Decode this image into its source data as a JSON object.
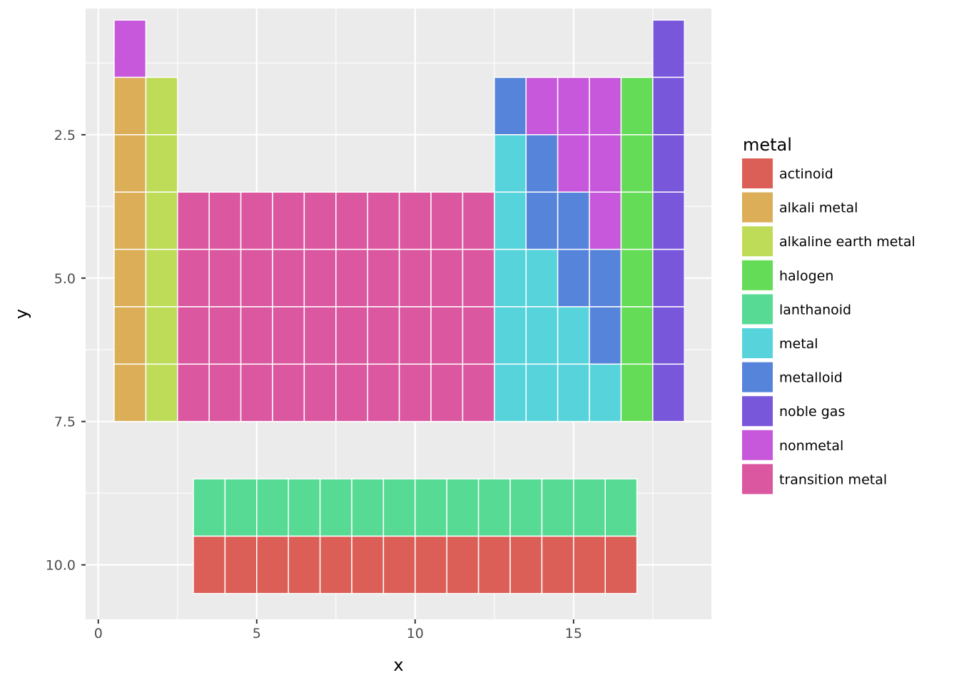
{
  "chart_data": {
    "type": "heatmap",
    "title": "",
    "xlabel": "x",
    "ylabel": "y",
    "xlim": [
      -0.4,
      19.35
    ],
    "ylim": [
      0.3,
      10.95
    ],
    "y_reversed": true,
    "grid": true,
    "legend_position": "right",
    "legend_title": "metal",
    "x_ticks": [
      {
        "value": 0,
        "label": "0"
      },
      {
        "value": 5,
        "label": "5"
      },
      {
        "value": 10,
        "label": "10"
      },
      {
        "value": 15,
        "label": "15"
      }
    ],
    "y_ticks": [
      {
        "value": 2.5,
        "label": "2.5"
      },
      {
        "value": 5.0,
        "label": "5.0"
      },
      {
        "value": 7.5,
        "label": "7.5"
      },
      {
        "value": 10.0,
        "label": "10.0"
      }
    ],
    "categories": [
      {
        "name": "actinoid",
        "color": "#DB5F57"
      },
      {
        "name": "alkali metal",
        "color": "#DBAE57"
      },
      {
        "name": "alkaline earth metal",
        "color": "#BEDC58"
      },
      {
        "name": "halogen",
        "color": "#65DC57"
      },
      {
        "name": "lanthanoid",
        "color": "#57DB94"
      },
      {
        "name": "metal",
        "color": "#57D3DB"
      },
      {
        "name": "metalloid",
        "color": "#5784DB"
      },
      {
        "name": "noble gas",
        "color": "#7957DB"
      },
      {
        "name": "nonmetal",
        "color": "#C757DB"
      },
      {
        "name": "transition metal",
        "color": "#DB57A0"
      }
    ],
    "rows": [
      {
        "y": 1,
        "cells": [
          {
            "x": 1,
            "c": "nonmetal"
          },
          {
            "x": 18,
            "c": "noble gas"
          }
        ]
      },
      {
        "y": 2,
        "cells": [
          {
            "x": 1,
            "c": "alkali metal"
          },
          {
            "x": 2,
            "c": "alkaline earth metal"
          },
          {
            "x": 13,
            "c": "metalloid"
          },
          {
            "x": 14,
            "c": "nonmetal"
          },
          {
            "x": 15,
            "c": "nonmetal"
          },
          {
            "x": 16,
            "c": "nonmetal"
          },
          {
            "x": 17,
            "c": "halogen"
          },
          {
            "x": 18,
            "c": "noble gas"
          }
        ]
      },
      {
        "y": 3,
        "cells": [
          {
            "x": 1,
            "c": "alkali metal"
          },
          {
            "x": 2,
            "c": "alkaline earth metal"
          },
          {
            "x": 13,
            "c": "metal"
          },
          {
            "x": 14,
            "c": "metalloid"
          },
          {
            "x": 15,
            "c": "nonmetal"
          },
          {
            "x": 16,
            "c": "nonmetal"
          },
          {
            "x": 17,
            "c": "halogen"
          },
          {
            "x": 18,
            "c": "noble gas"
          }
        ]
      },
      {
        "y": 4,
        "cells": [
          {
            "x": 1,
            "c": "alkali metal"
          },
          {
            "x": 2,
            "c": "alkaline earth metal"
          },
          {
            "x": 3,
            "c": "transition metal"
          },
          {
            "x": 4,
            "c": "transition metal"
          },
          {
            "x": 5,
            "c": "transition metal"
          },
          {
            "x": 6,
            "c": "transition metal"
          },
          {
            "x": 7,
            "c": "transition metal"
          },
          {
            "x": 8,
            "c": "transition metal"
          },
          {
            "x": 9,
            "c": "transition metal"
          },
          {
            "x": 10,
            "c": "transition metal"
          },
          {
            "x": 11,
            "c": "transition metal"
          },
          {
            "x": 12,
            "c": "transition metal"
          },
          {
            "x": 13,
            "c": "metal"
          },
          {
            "x": 14,
            "c": "metalloid"
          },
          {
            "x": 15,
            "c": "metalloid"
          },
          {
            "x": 16,
            "c": "nonmetal"
          },
          {
            "x": 17,
            "c": "halogen"
          },
          {
            "x": 18,
            "c": "noble gas"
          }
        ]
      },
      {
        "y": 5,
        "cells": [
          {
            "x": 1,
            "c": "alkali metal"
          },
          {
            "x": 2,
            "c": "alkaline earth metal"
          },
          {
            "x": 3,
            "c": "transition metal"
          },
          {
            "x": 4,
            "c": "transition metal"
          },
          {
            "x": 5,
            "c": "transition metal"
          },
          {
            "x": 6,
            "c": "transition metal"
          },
          {
            "x": 7,
            "c": "transition metal"
          },
          {
            "x": 8,
            "c": "transition metal"
          },
          {
            "x": 9,
            "c": "transition metal"
          },
          {
            "x": 10,
            "c": "transition metal"
          },
          {
            "x": 11,
            "c": "transition metal"
          },
          {
            "x": 12,
            "c": "transition metal"
          },
          {
            "x": 13,
            "c": "metal"
          },
          {
            "x": 14,
            "c": "metal"
          },
          {
            "x": 15,
            "c": "metalloid"
          },
          {
            "x": 16,
            "c": "metalloid"
          },
          {
            "x": 17,
            "c": "halogen"
          },
          {
            "x": 18,
            "c": "noble gas"
          }
        ]
      },
      {
        "y": 6,
        "cells": [
          {
            "x": 1,
            "c": "alkali metal"
          },
          {
            "x": 2,
            "c": "alkaline earth metal"
          },
          {
            "x": 3,
            "c": "transition metal"
          },
          {
            "x": 4,
            "c": "transition metal"
          },
          {
            "x": 5,
            "c": "transition metal"
          },
          {
            "x": 6,
            "c": "transition metal"
          },
          {
            "x": 7,
            "c": "transition metal"
          },
          {
            "x": 8,
            "c": "transition metal"
          },
          {
            "x": 9,
            "c": "transition metal"
          },
          {
            "x": 10,
            "c": "transition metal"
          },
          {
            "x": 11,
            "c": "transition metal"
          },
          {
            "x": 12,
            "c": "transition metal"
          },
          {
            "x": 13,
            "c": "metal"
          },
          {
            "x": 14,
            "c": "metal"
          },
          {
            "x": 15,
            "c": "metal"
          },
          {
            "x": 16,
            "c": "metalloid"
          },
          {
            "x": 17,
            "c": "halogen"
          },
          {
            "x": 18,
            "c": "noble gas"
          }
        ]
      },
      {
        "y": 7,
        "cells": [
          {
            "x": 1,
            "c": "alkali metal"
          },
          {
            "x": 2,
            "c": "alkaline earth metal"
          },
          {
            "x": 3,
            "c": "transition metal"
          },
          {
            "x": 4,
            "c": "transition metal"
          },
          {
            "x": 5,
            "c": "transition metal"
          },
          {
            "x": 6,
            "c": "transition metal"
          },
          {
            "x": 7,
            "c": "transition metal"
          },
          {
            "x": 8,
            "c": "transition metal"
          },
          {
            "x": 9,
            "c": "transition metal"
          },
          {
            "x": 10,
            "c": "transition metal"
          },
          {
            "x": 11,
            "c": "transition metal"
          },
          {
            "x": 12,
            "c": "transition metal"
          },
          {
            "x": 13,
            "c": "metal"
          },
          {
            "x": 14,
            "c": "metal"
          },
          {
            "x": 15,
            "c": "metal"
          },
          {
            "x": 16,
            "c": "metal"
          },
          {
            "x": 17,
            "c": "halogen"
          },
          {
            "x": 18,
            "c": "noble gas"
          }
        ]
      },
      {
        "y": 9,
        "cells": [
          {
            "x": 3.5,
            "c": "lanthanoid"
          },
          {
            "x": 4.5,
            "c": "lanthanoid"
          },
          {
            "x": 5.5,
            "c": "lanthanoid"
          },
          {
            "x": 6.5,
            "c": "lanthanoid"
          },
          {
            "x": 7.5,
            "c": "lanthanoid"
          },
          {
            "x": 8.5,
            "c": "lanthanoid"
          },
          {
            "x": 9.5,
            "c": "lanthanoid"
          },
          {
            "x": 10.5,
            "c": "lanthanoid"
          },
          {
            "x": 11.5,
            "c": "lanthanoid"
          },
          {
            "x": 12.5,
            "c": "lanthanoid"
          },
          {
            "x": 13.5,
            "c": "lanthanoid"
          },
          {
            "x": 14.5,
            "c": "lanthanoid"
          },
          {
            "x": 15.5,
            "c": "lanthanoid"
          },
          {
            "x": 16.5,
            "c": "lanthanoid"
          }
        ]
      },
      {
        "y": 10,
        "cells": [
          {
            "x": 3.5,
            "c": "actinoid"
          },
          {
            "x": 4.5,
            "c": "actinoid"
          },
          {
            "x": 5.5,
            "c": "actinoid"
          },
          {
            "x": 6.5,
            "c": "actinoid"
          },
          {
            "x": 7.5,
            "c": "actinoid"
          },
          {
            "x": 8.5,
            "c": "actinoid"
          },
          {
            "x": 9.5,
            "c": "actinoid"
          },
          {
            "x": 10.5,
            "c": "actinoid"
          },
          {
            "x": 11.5,
            "c": "actinoid"
          },
          {
            "x": 12.5,
            "c": "actinoid"
          },
          {
            "x": 13.5,
            "c": "actinoid"
          },
          {
            "x": 14.5,
            "c": "actinoid"
          },
          {
            "x": 15.5,
            "c": "actinoid"
          },
          {
            "x": 16.5,
            "c": "actinoid"
          }
        ]
      }
    ]
  }
}
